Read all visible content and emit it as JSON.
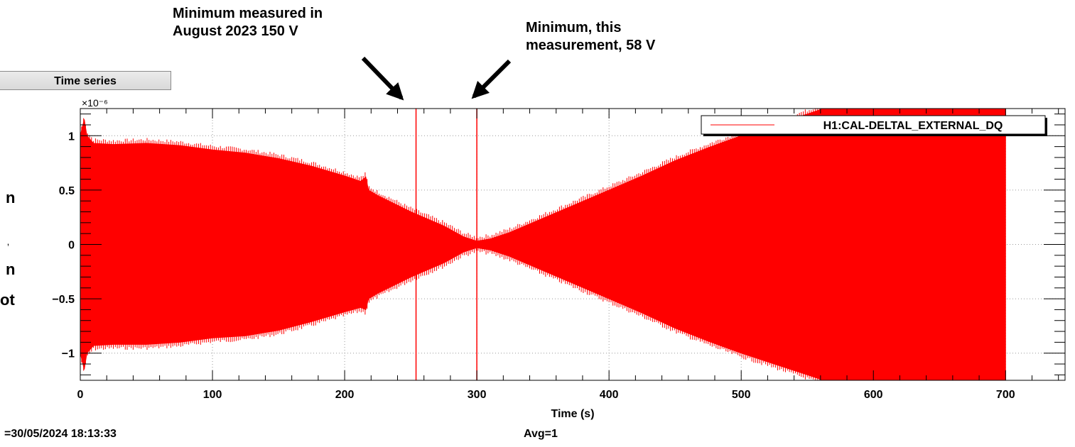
{
  "annotations": {
    "august_min": [
      "Minimum measured in",
      "August 2023  150 V"
    ],
    "this_min": [
      "Minimum, this",
      "measurement, 58 V"
    ]
  },
  "left_fragments": {
    "n1": "n",
    "tick": "ʼ",
    "n2": "n",
    "ot": "ot"
  },
  "panel": {
    "tab_label": "Time series"
  },
  "footer": {
    "timestamp": "=30/05/2024 18:13:33",
    "avg": "Avg=1"
  },
  "colors": {
    "signal": "#ff0000",
    "axes": "#000000",
    "grid": "#9a9a9a"
  },
  "chart_data": {
    "type": "line",
    "title": "",
    "xlabel": "Time (s)",
    "ylabel": "",
    "y_multiplier_label": "×10⁻⁶",
    "xlim": [
      0,
      745
    ],
    "ylim": [
      -1.25,
      1.25
    ],
    "x_ticks": [
      0,
      100,
      200,
      300,
      400,
      500,
      600,
      700
    ],
    "x_tick_labels": [
      "0",
      "100",
      "200",
      "300",
      "400",
      "500",
      "600",
      "700"
    ],
    "y_ticks": [
      -1,
      -0.5,
      0,
      0.5,
      1
    ],
    "y_tick_labels": [
      "−1",
      "−0.5",
      "0",
      "0.5",
      "1"
    ],
    "grid": true,
    "legend": {
      "position": "top-right",
      "entries": [
        "H1:CAL-DELTAL_EXTERNAL_DQ"
      ]
    },
    "series": [
      {
        "name": "H1:CAL-DELTAL_EXTERNAL_DQ",
        "kind": "oscillation-envelope",
        "x": [
          0,
          3,
          5,
          10,
          25,
          50,
          75,
          100,
          125,
          150,
          175,
          200,
          212,
          216,
          218,
          225,
          250,
          275,
          290,
          300,
          310,
          325,
          350,
          375,
          400,
          425,
          450,
          475,
          500,
          525,
          550,
          575,
          600,
          625,
          650,
          675,
          700
        ],
        "envelope_upper": [
          1.0,
          1.15,
          1.0,
          0.93,
          0.92,
          0.93,
          0.91,
          0.87,
          0.84,
          0.79,
          0.72,
          0.63,
          0.58,
          0.62,
          0.5,
          0.45,
          0.3,
          0.17,
          0.07,
          0.03,
          0.05,
          0.11,
          0.24,
          0.37,
          0.5,
          0.63,
          0.77,
          0.89,
          1.0,
          1.1,
          1.2,
          1.3,
          1.3,
          1.3,
          1.3,
          1.3,
          1.3
        ],
        "envelope_lower": [
          -1.0,
          -1.15,
          -1.0,
          -0.93,
          -0.92,
          -0.92,
          -0.9,
          -0.86,
          -0.84,
          -0.79,
          -0.71,
          -0.62,
          -0.58,
          -0.6,
          -0.5,
          -0.45,
          -0.3,
          -0.17,
          -0.07,
          -0.03,
          -0.05,
          -0.11,
          -0.24,
          -0.37,
          -0.5,
          -0.63,
          -0.77,
          -0.89,
          -1.0,
          -1.1,
          -1.2,
          -1.3,
          -1.3,
          -1.3,
          -1.3,
          -1.3,
          -1.3
        ]
      }
    ],
    "markers": [
      {
        "x": 254,
        "description": "vertical line"
      },
      {
        "x": 300,
        "description": "vertical line"
      }
    ]
  }
}
